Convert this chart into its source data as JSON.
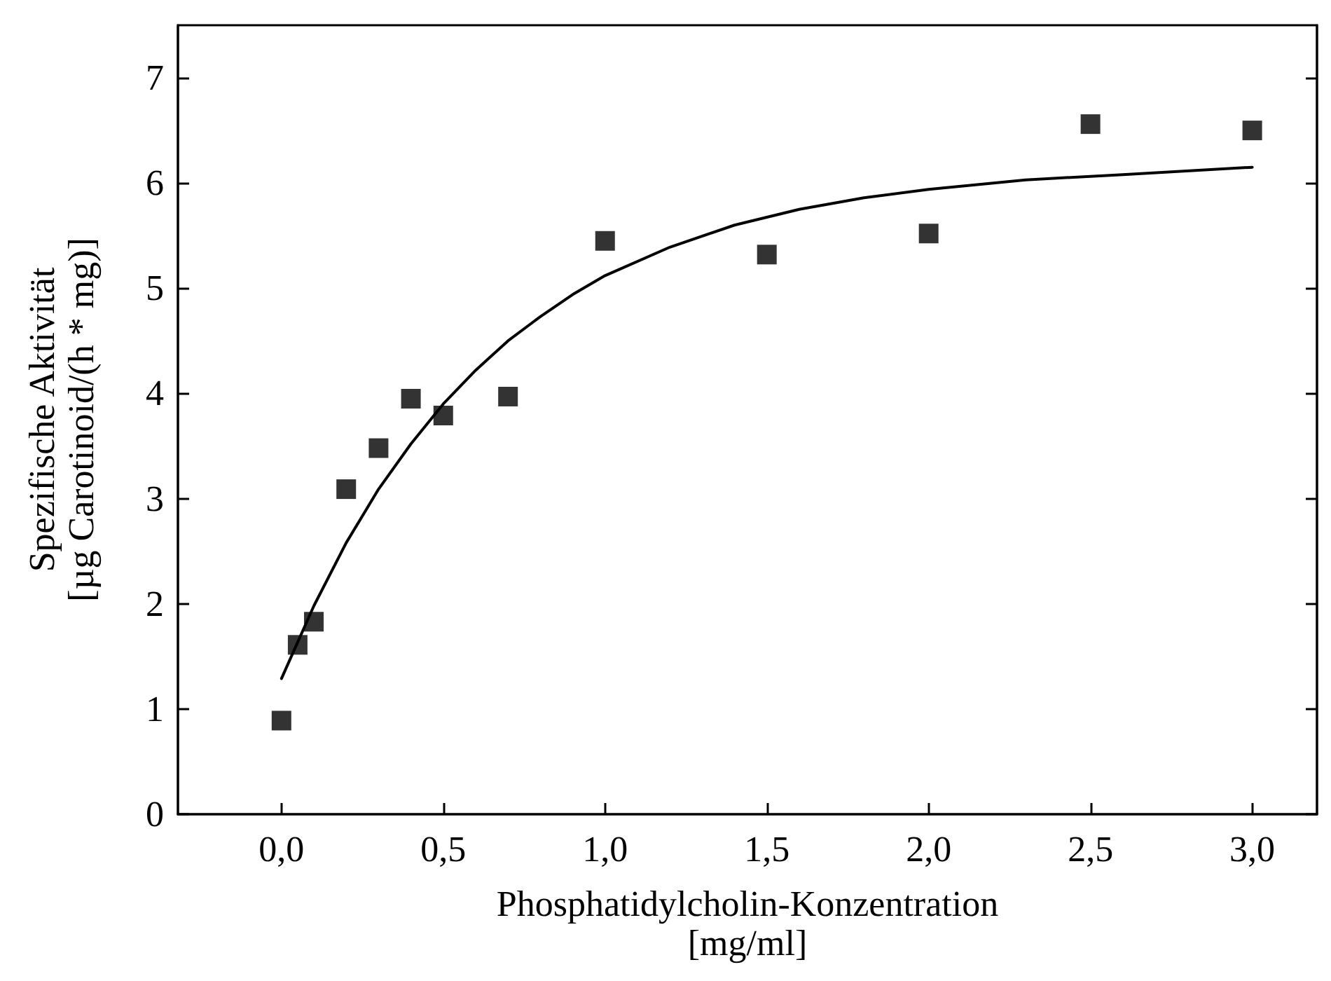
{
  "chart_data": {
    "type": "scatter",
    "xlabel": "Phosphatidylcholin-Konzentration\n[mg/ml]",
    "ylabel": "Spezifische Aktivität\n[µg Carotinoid/(h * mg)]",
    "xlim": [
      -0.32,
      3.2
    ],
    "ylim": [
      0,
      7.5
    ],
    "xticks": [
      {
        "value": 0,
        "label": "0,0"
      },
      {
        "value": 0.5,
        "label": "0,5"
      },
      {
        "value": 1,
        "label": "1,0"
      },
      {
        "value": 1.5,
        "label": "1,5"
      },
      {
        "value": 2,
        "label": "2,0"
      },
      {
        "value": 2.5,
        "label": "2,5"
      },
      {
        "value": 3,
        "label": "3,0"
      }
    ],
    "yticks": [
      0,
      1,
      2,
      3,
      4,
      5,
      6,
      7
    ],
    "grid": false,
    "series": [
      {
        "marker": "square",
        "color": "#000000",
        "x": [
          0,
          0.05,
          0.1,
          0.2,
          0.3,
          0.4,
          0.5,
          0.7,
          1.0,
          1.5,
          2.0,
          2.5,
          3.0
        ],
        "values": [
          0.89,
          1.61,
          1.83,
          3.09,
          3.48,
          3.95,
          3.79,
          3.97,
          5.45,
          5.32,
          5.52,
          6.56,
          6.5
        ]
      },
      {
        "type": "line",
        "marker": "none",
        "line_style": "solid",
        "color": "#000000",
        "x": [
          0,
          0.1,
          0.2,
          0.3,
          0.4,
          0.5,
          0.6,
          0.7,
          0.8,
          0.9,
          1.0,
          1.2,
          1.4,
          1.6,
          1.8,
          2.0,
          2.3,
          2.6,
          3.0
        ],
        "values": [
          1.29,
          1.98,
          2.58,
          3.09,
          3.52,
          3.9,
          4.22,
          4.5,
          4.73,
          4.94,
          5.12,
          5.39,
          5.6,
          5.75,
          5.86,
          5.94,
          6.03,
          6.08,
          6.15
        ]
      }
    ]
  }
}
